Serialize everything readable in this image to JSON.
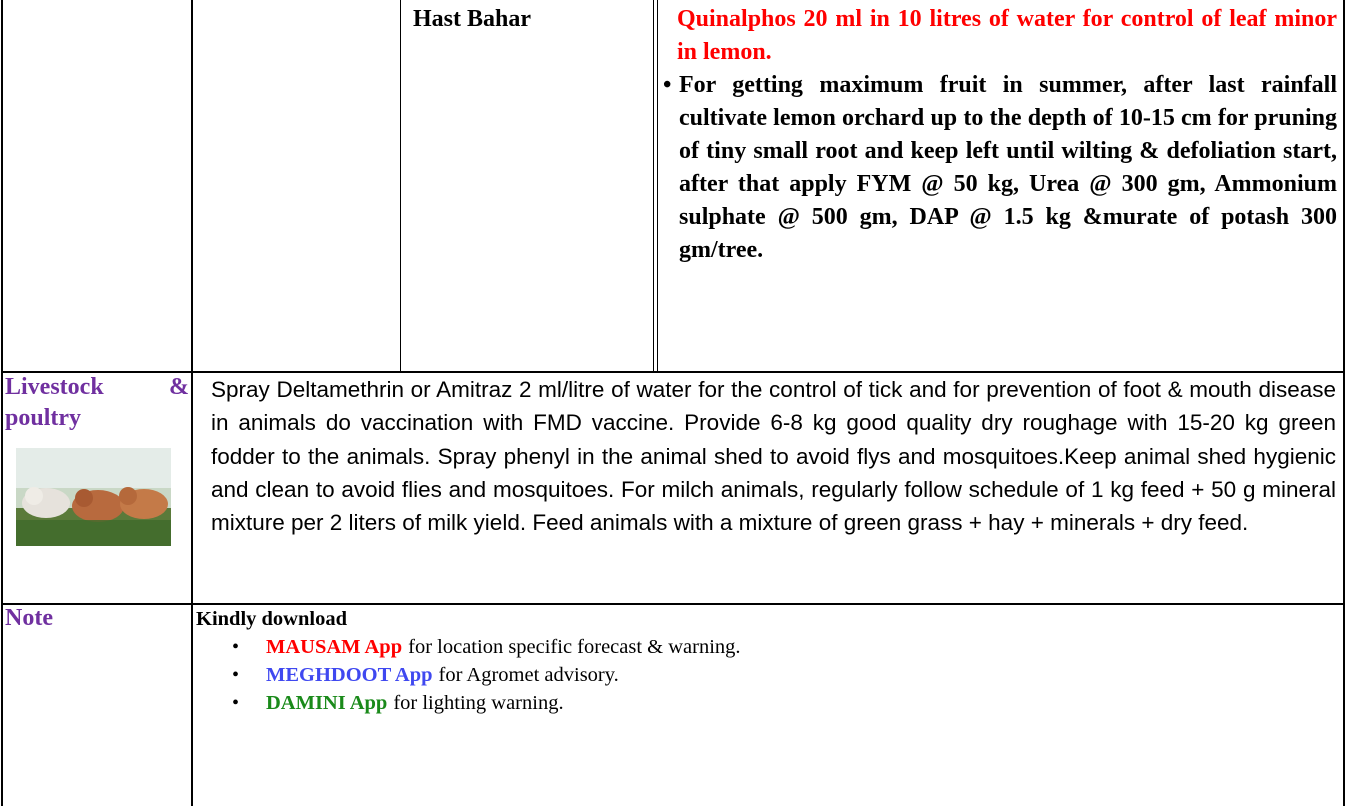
{
  "row1": {
    "season": "Hast Bahar",
    "red_text": "Quinalphos 20 ml in 10 litres of water for control of leaf minor in lemon.",
    "bullet": "For getting maximum fruit in summer, after last rainfall cultivate lemon orchard up to the depth of 10-15 cm for pruning of tiny small root and keep left until wilting & defoliation start, after that apply FYM @ 50 kg, Urea @ 300 gm, Ammonium sulphate @ 500 gm, DAP @ 1.5 kg &murate of potash 300 gm/tree."
  },
  "livestock": {
    "label": "Livestock & poultry",
    "text": "Spray Deltamethrin or Amitraz 2 ml/litre of water for the control of tick and for prevention of foot & mouth disease in animals do vaccination with FMD vaccine. Provide 6-8 kg good quality dry roughage with 15-20 kg green fodder to the animals. Spray phenyl in the animal shed to avoid flys and mosquitoes.Keep animal shed hygienic and clean to avoid flies and mosquitoes. For milch animals, regularly follow schedule of 1 kg feed + 50 g mineral mixture per 2 liters of milk yield. Feed animals with a mixture of green grass + hay + minerals + dry feed."
  },
  "note": {
    "label": "Note",
    "heading": "Kindly download",
    "items": [
      {
        "app": "MAUSAM App",
        "color": "#ff0000",
        "text": "for location specific forecast & warning."
      },
      {
        "app": "MEGHDOOT App",
        "color": "#3f48f0",
        "text": "for Agromet advisory."
      },
      {
        "app": "DAMINI App",
        "color": "#1a8a1a",
        "text": "for lighting warning."
      }
    ]
  }
}
